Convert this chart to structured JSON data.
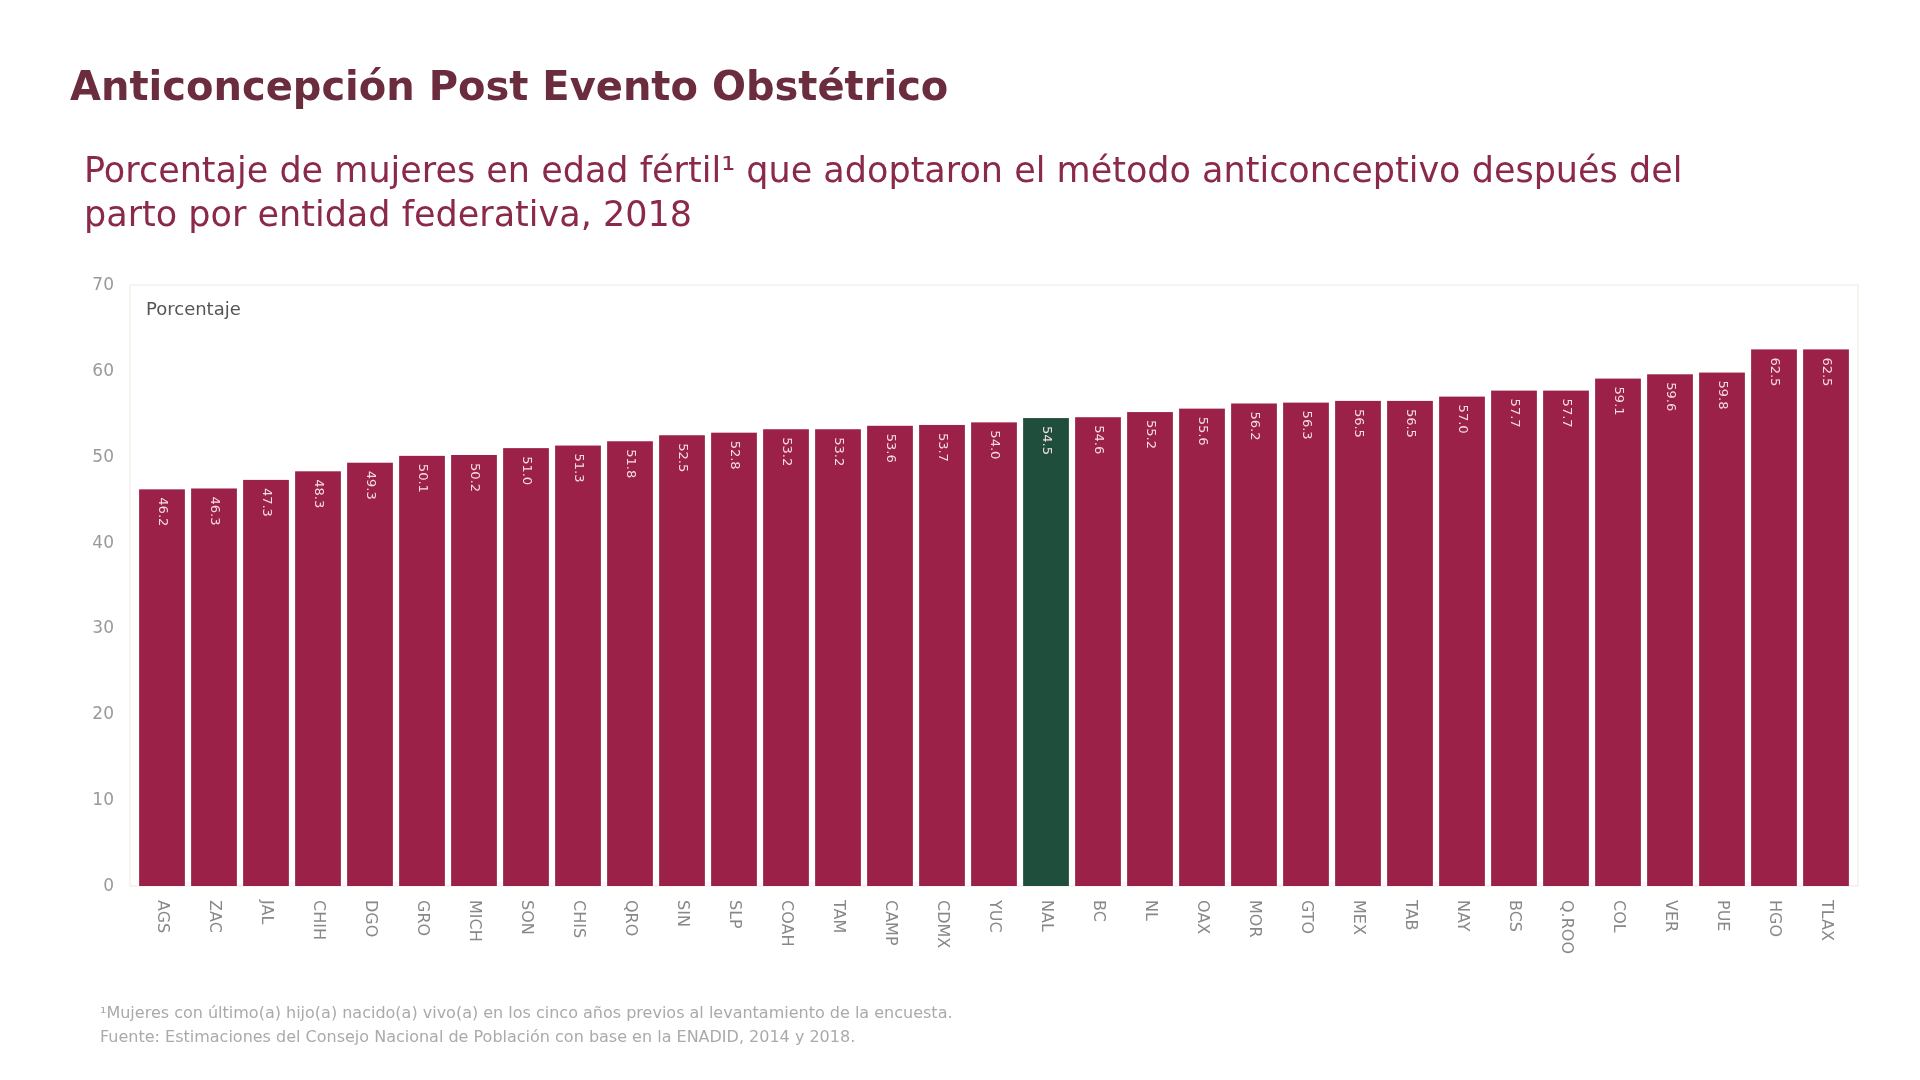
{
  "chart_data": {
    "type": "bar",
    "title": "Anticoncepción Post Evento Obstétrico",
    "subtitle": "Porcentaje de mujeres en edad fértil¹ que adoptaron el método anticonceptivo después del parto por entidad federativa, 2018",
    "ylabel": "Porcentaje",
    "categories": [
      "AGS",
      "ZAC",
      "JAL",
      "CHIH",
      "DGO",
      "GRO",
      "MICH",
      "SON",
      "CHIS",
      "QRO",
      "SIN",
      "SLP",
      "COAH",
      "TAM",
      "CAMP",
      "CDMX",
      "YUC",
      "NAL",
      "BC",
      "NL",
      "OAX",
      "MOR",
      "GTO",
      "MEX",
      "TAB",
      "NAY",
      "BCS",
      "Q.ROO",
      "COL",
      "VER",
      "PUE",
      "HGO",
      "TLAX"
    ],
    "values": [
      46.2,
      46.3,
      47.3,
      48.3,
      49.3,
      50.1,
      50.2,
      51.0,
      51.3,
      51.8,
      52.5,
      52.8,
      53.2,
      53.2,
      53.6,
      53.7,
      54.0,
      54.5,
      54.6,
      55.2,
      55.6,
      56.2,
      56.3,
      56.5,
      56.5,
      57.0,
      57.7,
      57.7,
      59.1,
      59.6,
      59.8,
      62.5,
      62.5
    ],
    "colors": [
      "#9c2148",
      "#9c2148",
      "#9c2148",
      "#9c2148",
      "#9c2148",
      "#9c2148",
      "#9c2148",
      "#9c2148",
      "#9c2148",
      "#9c2148",
      "#9c2148",
      "#9c2148",
      "#9c2148",
      "#9c2148",
      "#9c2148",
      "#9c2148",
      "#9c2148",
      "#1f4e3d",
      "#9c2148",
      "#9c2148",
      "#9c2148",
      "#9c2148",
      "#9c2148",
      "#9c2148",
      "#9c2148",
      "#9c2148",
      "#9c2148",
      "#9c2148",
      "#9c2148",
      "#9c2148",
      "#9c2148",
      "#9c2148",
      "#9c2148"
    ],
    "value_labels": [
      "46.2",
      "46.3",
      "47.3",
      "48.3",
      "49.3",
      "50.1",
      "50.2",
      "51.0",
      "51.3",
      "51.8",
      "52.5",
      "52.8",
      "53.2",
      "53.2",
      "53.6",
      "53.7",
      "54.0",
      "54.5",
      "54.6",
      "55.2",
      "55.6",
      "56.2",
      "56.3",
      "56.5",
      "56.5",
      "57.0",
      "57.7",
      "57.7",
      "59.1",
      "59.6",
      "59.8",
      "62.5",
      "62.5"
    ],
    "ylim": [
      0,
      70
    ],
    "yticks": [
      0,
      10,
      20,
      30,
      40,
      50,
      60,
      70
    ],
    "grid": false,
    "annotations": [
      "¹Mujeres con último(a) hijo(a) nacido(a) vivo(a) en los cinco años previos al levantamiento de la encuesta.",
      "Fuente: Estimaciones del Consejo Nacional de Población con base en la ENADID, 2014 y 2018."
    ]
  }
}
